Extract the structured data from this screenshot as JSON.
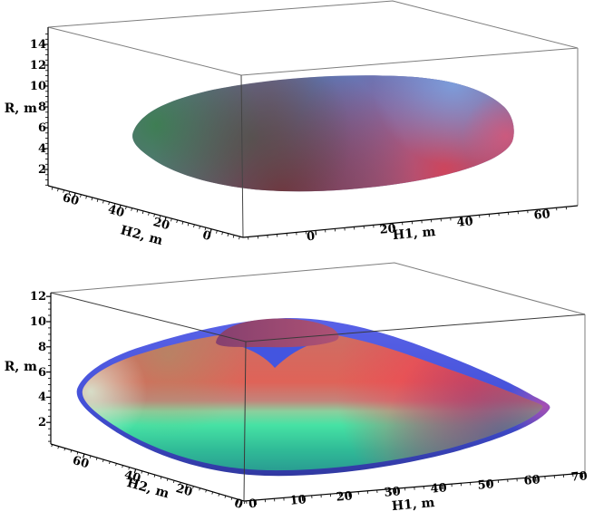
{
  "background": "#ffffff",
  "plots": [
    {
      "id": "top",
      "z_axis_label": "R, m",
      "h1_axis_label": "H1, m",
      "h2_axis_label": "H2, m",
      "r_tick_labels": [
        "2",
        "4",
        "6",
        "8",
        "10",
        "12",
        "14"
      ],
      "h2_tick_labels": [
        "60",
        "40",
        "20",
        "0"
      ],
      "h1_tick_labels": [
        "0",
        "20",
        "40",
        "60"
      ]
    },
    {
      "id": "bottom",
      "z_axis_label": "R, m",
      "h1_axis_label": "H1, m",
      "h2_axis_label": "H2, m",
      "r_tick_labels": [
        "2",
        "4",
        "6",
        "8",
        "10",
        "12"
      ],
      "h2_tick_labels": [
        "60",
        "40",
        "20",
        "0"
      ],
      "h1_tick_labels": [
        "0",
        "10",
        "20",
        "30",
        "40",
        "50",
        "60",
        "70"
      ]
    }
  ],
  "colors": {
    "box_frame": "#7d7d7d",
    "axis": "#000000",
    "top_surface_green_tip": "#3c7f50",
    "top_surface_blue_top": "#3e8ce8",
    "top_surface_center_violet": "#6b6f9e",
    "top_surface_red_bottom": "#d84054",
    "top_surface_dark_maroon_edge": "#7c2936",
    "bottom_surface_salmon_top": "#dd6a5e",
    "bottom_surface_red_right": "#f53a52",
    "bottom_surface_green_bottom": "#46e2a4",
    "bottom_surface_teal_edge": "#279390",
    "bottom_blue_envelope": "#4a55e0",
    "bottom_purple_cap": "#9a4878"
  },
  "chart_data": [
    {
      "type": "surface",
      "title": "",
      "xlabel": "H1, m",
      "ylabel": "H2, m",
      "zlabel": "R, m",
      "xlim": [
        0,
        70
      ],
      "ylim": [
        0,
        70
      ],
      "zlim": [
        0,
        15
      ],
      "x_ticks": [
        0,
        20,
        40,
        60
      ],
      "y_ticks": [
        0,
        20,
        40,
        60
      ],
      "z_ticks": [
        2,
        4,
        6,
        8,
        10,
        12,
        14
      ],
      "grid": false,
      "legend": "none",
      "view": "3D box axes viewed from upper front-left",
      "surfaces": [
        {
          "name": "dome-surface",
          "peak_R_m": 10.5,
          "H1_extent_m": [
            0,
            57
          ],
          "H2_extent_m": [
            0,
            57
          ],
          "color_mapping": "green at far H2 tip, blue on upper side, violet center, red on lower/near side, dark maroon under-edge"
        }
      ]
    },
    {
      "type": "surface",
      "title": "",
      "xlabel": "H1, m",
      "ylabel": "H2, m",
      "zlabel": "R, m",
      "xlim": [
        0,
        70
      ],
      "ylim": [
        0,
        70
      ],
      "zlim": [
        0,
        12
      ],
      "x_ticks": [
        0,
        10,
        20,
        30,
        40,
        50,
        60,
        70
      ],
      "y_ticks": [
        0,
        20,
        40,
        60
      ],
      "z_ticks": [
        2,
        4,
        6,
        8,
        10,
        12
      ],
      "grid": false,
      "legend": "none",
      "view": "3D box axes viewed from upper front-left",
      "surfaces": [
        {
          "name": "red-green-surface",
          "peak_R_m": 10.5,
          "H1_extent_m": [
            0,
            62
          ],
          "H2_extent_m": [
            0,
            70
          ],
          "color_mapping": "salmon/red upper half, spring-green to teal lower half, pale mint at far H2 tip, purple cap where seen through blue surface"
        },
        {
          "name": "blue-envelope-surface",
          "peak_R_m": 11,
          "H1_extent_m": [
            0,
            65
          ],
          "H2_extent_m": [
            0,
            72
          ],
          "color_mapping": "translucent blue envelope slightly larger than red-green surface; visible as blue rim and valley notch at top center"
        }
      ]
    }
  ]
}
